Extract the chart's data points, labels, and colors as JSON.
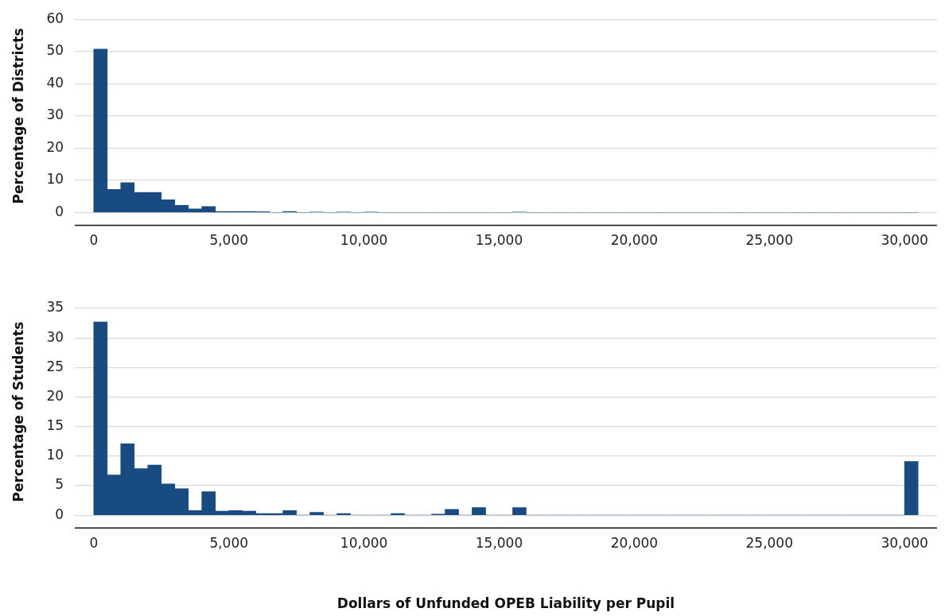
{
  "chart_data": [
    {
      "type": "histogram",
      "ylabel": "Percentage of Districts",
      "color": "#174b82",
      "grid": "y",
      "legend": false,
      "bins": [
        0,
        500,
        1000,
        1500,
        2000,
        2500,
        3000,
        3500,
        4000,
        4500,
        5000,
        5500,
        6000,
        6500,
        7000,
        7500,
        8000,
        8500,
        9000,
        9500,
        10000,
        10500,
        11000,
        11500,
        12000,
        12500,
        13000,
        13500,
        14000,
        14500,
        15000,
        15500,
        16000,
        16500,
        17000,
        17500,
        18000,
        18500,
        19000,
        19500,
        20000,
        20500,
        21000,
        21500,
        22000,
        22500,
        23000,
        23500,
        24000,
        24500,
        25000,
        25500,
        26000,
        26500,
        27000,
        27500,
        28000,
        28500,
        29000,
        29500,
        30000,
        30500
      ],
      "values": [
        50.7,
        7.2,
        9.3,
        6.3,
        6.3,
        4.0,
        2.3,
        1.2,
        1.9,
        0.4,
        0.4,
        0.4,
        0.3,
        0,
        0.4,
        0,
        0.2,
        0,
        0.2,
        0,
        0.2,
        0,
        0,
        0,
        0,
        0,
        0,
        0,
        0,
        0,
        0,
        0.2,
        0,
        0,
        0,
        0,
        0,
        0,
        0,
        0,
        0,
        0,
        0,
        0,
        0,
        0,
        0,
        0,
        0,
        0,
        0,
        0,
        0,
        0,
        0,
        0,
        0,
        0,
        0,
        0,
        0
      ],
      "xlim": [
        -700,
        31200
      ],
      "xticks": [
        0,
        {
          "value": 5000,
          "label": "5,000"
        },
        {
          "value": 10000,
          "label": "10,000"
        },
        {
          "value": 15000,
          "label": "15,000"
        },
        {
          "value": 20000,
          "label": "20,000"
        },
        {
          "value": 25000,
          "label": "25,000"
        },
        {
          "value": 30000,
          "label": "30,000"
        }
      ],
      "ylim": [
        0,
        60
      ],
      "yticks": [
        0,
        10,
        20,
        30,
        40,
        50,
        60
      ]
    },
    {
      "type": "histogram",
      "ylabel": "Percentage of Students",
      "xlabel": "Dollars of Unfunded OPEB Liability per Pupil",
      "color": "#174b82",
      "grid": "y",
      "legend": false,
      "bins": [
        0,
        500,
        1000,
        1500,
        2000,
        2500,
        3000,
        3500,
        4000,
        4500,
        5000,
        5500,
        6000,
        6500,
        7000,
        7500,
        8000,
        8500,
        9000,
        9500,
        10000,
        10500,
        11000,
        11500,
        12000,
        12500,
        13000,
        13500,
        14000,
        14500,
        15000,
        15500,
        16000,
        16500,
        17000,
        17500,
        18000,
        18500,
        19000,
        19500,
        20000,
        20500,
        21000,
        21500,
        22000,
        22500,
        23000,
        23500,
        24000,
        24500,
        25000,
        25500,
        26000,
        26500,
        27000,
        27500,
        28000,
        28500,
        29000,
        29500,
        30000,
        30500
      ],
      "values": [
        32.7,
        6.8,
        12.1,
        7.9,
        8.5,
        5.3,
        4.5,
        0.8,
        4.0,
        0.7,
        0.8,
        0.7,
        0.3,
        0.3,
        0.8,
        0,
        0.5,
        0,
        0.3,
        0,
        0,
        0,
        0.3,
        0,
        0,
        0.2,
        1.0,
        0,
        1.3,
        0,
        0,
        1.3,
        0,
        0,
        0,
        0,
        0,
        0,
        0,
        0,
        0,
        0,
        0,
        0,
        0,
        0,
        0,
        0,
        0,
        0,
        0,
        0,
        0,
        0,
        0,
        0,
        0,
        0,
        0,
        0,
        9.1
      ],
      "xlim": [
        -700,
        31200
      ],
      "xticks": [
        0,
        {
          "value": 5000,
          "label": "5,000"
        },
        {
          "value": 10000,
          "label": "10,000"
        },
        {
          "value": 15000,
          "label": "15,000"
        },
        {
          "value": 20000,
          "label": "20,000"
        },
        {
          "value": 25000,
          "label": "25,000"
        },
        {
          "value": 30000,
          "label": "30,000"
        }
      ],
      "ylim": [
        0,
        35
      ],
      "yticks": [
        0,
        5,
        10,
        15,
        20,
        25,
        30,
        35
      ]
    }
  ]
}
